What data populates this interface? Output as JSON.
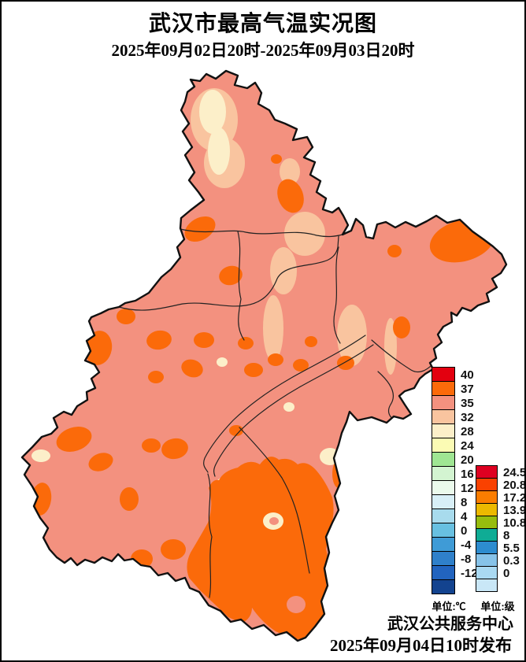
{
  "title": "武汉市最高气温实况图",
  "subtitle": "2025年09月02日20时-2025年09月03日20时",
  "footer": {
    "publisher": "武汉公共服务中心",
    "released": "2025年09月04日10时发布"
  },
  "legend_temp": {
    "unit_label": "单位:℃",
    "entries": [
      {
        "label": "40",
        "color": "#E3000F"
      },
      {
        "label": "37",
        "color": "#FB6A0A"
      },
      {
        "label": "35",
        "color": "#F3917F"
      },
      {
        "label": "32",
        "color": "#F9C49F"
      },
      {
        "label": "28",
        "color": "#FCEFC9"
      },
      {
        "label": "24",
        "color": "#FBFBB4"
      },
      {
        "label": "20",
        "color": "#9FE693"
      },
      {
        "label": "16",
        "color": "#D3F4D1"
      },
      {
        "label": "12",
        "color": "#EBFAEC"
      },
      {
        "label": "8",
        "color": "#D8EFF7"
      },
      {
        "label": "4",
        "color": "#A8DBED"
      },
      {
        "label": "0",
        "color": "#68C0E1"
      },
      {
        "label": "-4",
        "color": "#3F9BD6"
      },
      {
        "label": "-8",
        "color": "#2F80CA"
      },
      {
        "label": "-12",
        "color": "#2264BF"
      },
      {
        "label": "",
        "color": "#13438F"
      }
    ]
  },
  "legend_level": {
    "unit_label": "单位:级",
    "entries": [
      {
        "label": "24.5",
        "color": "#DE0021"
      },
      {
        "label": "20.8",
        "color": "#FA4100"
      },
      {
        "label": "17.2",
        "color": "#FB7D00"
      },
      {
        "label": "13.9",
        "color": "#ECB900"
      },
      {
        "label": "10.8",
        "color": "#97BD0E"
      },
      {
        "label": "8",
        "color": "#0FAC95"
      },
      {
        "label": "5.5",
        "color": "#2D8CCF"
      },
      {
        "label": "0.3",
        "color": "#87C3E9"
      },
      {
        "label": "0",
        "color": "#AAD9F2"
      },
      {
        "label": "",
        "color": "#C9E7F7"
      }
    ]
  },
  "map": {
    "region": "武汉市",
    "colors": {
      "c37": "#FB6A0A",
      "c35": "#F3917F",
      "c32": "#F9C49F",
      "c28": "#FCEFC9",
      "boundary": "#111111",
      "district_line": "#222222"
    }
  }
}
